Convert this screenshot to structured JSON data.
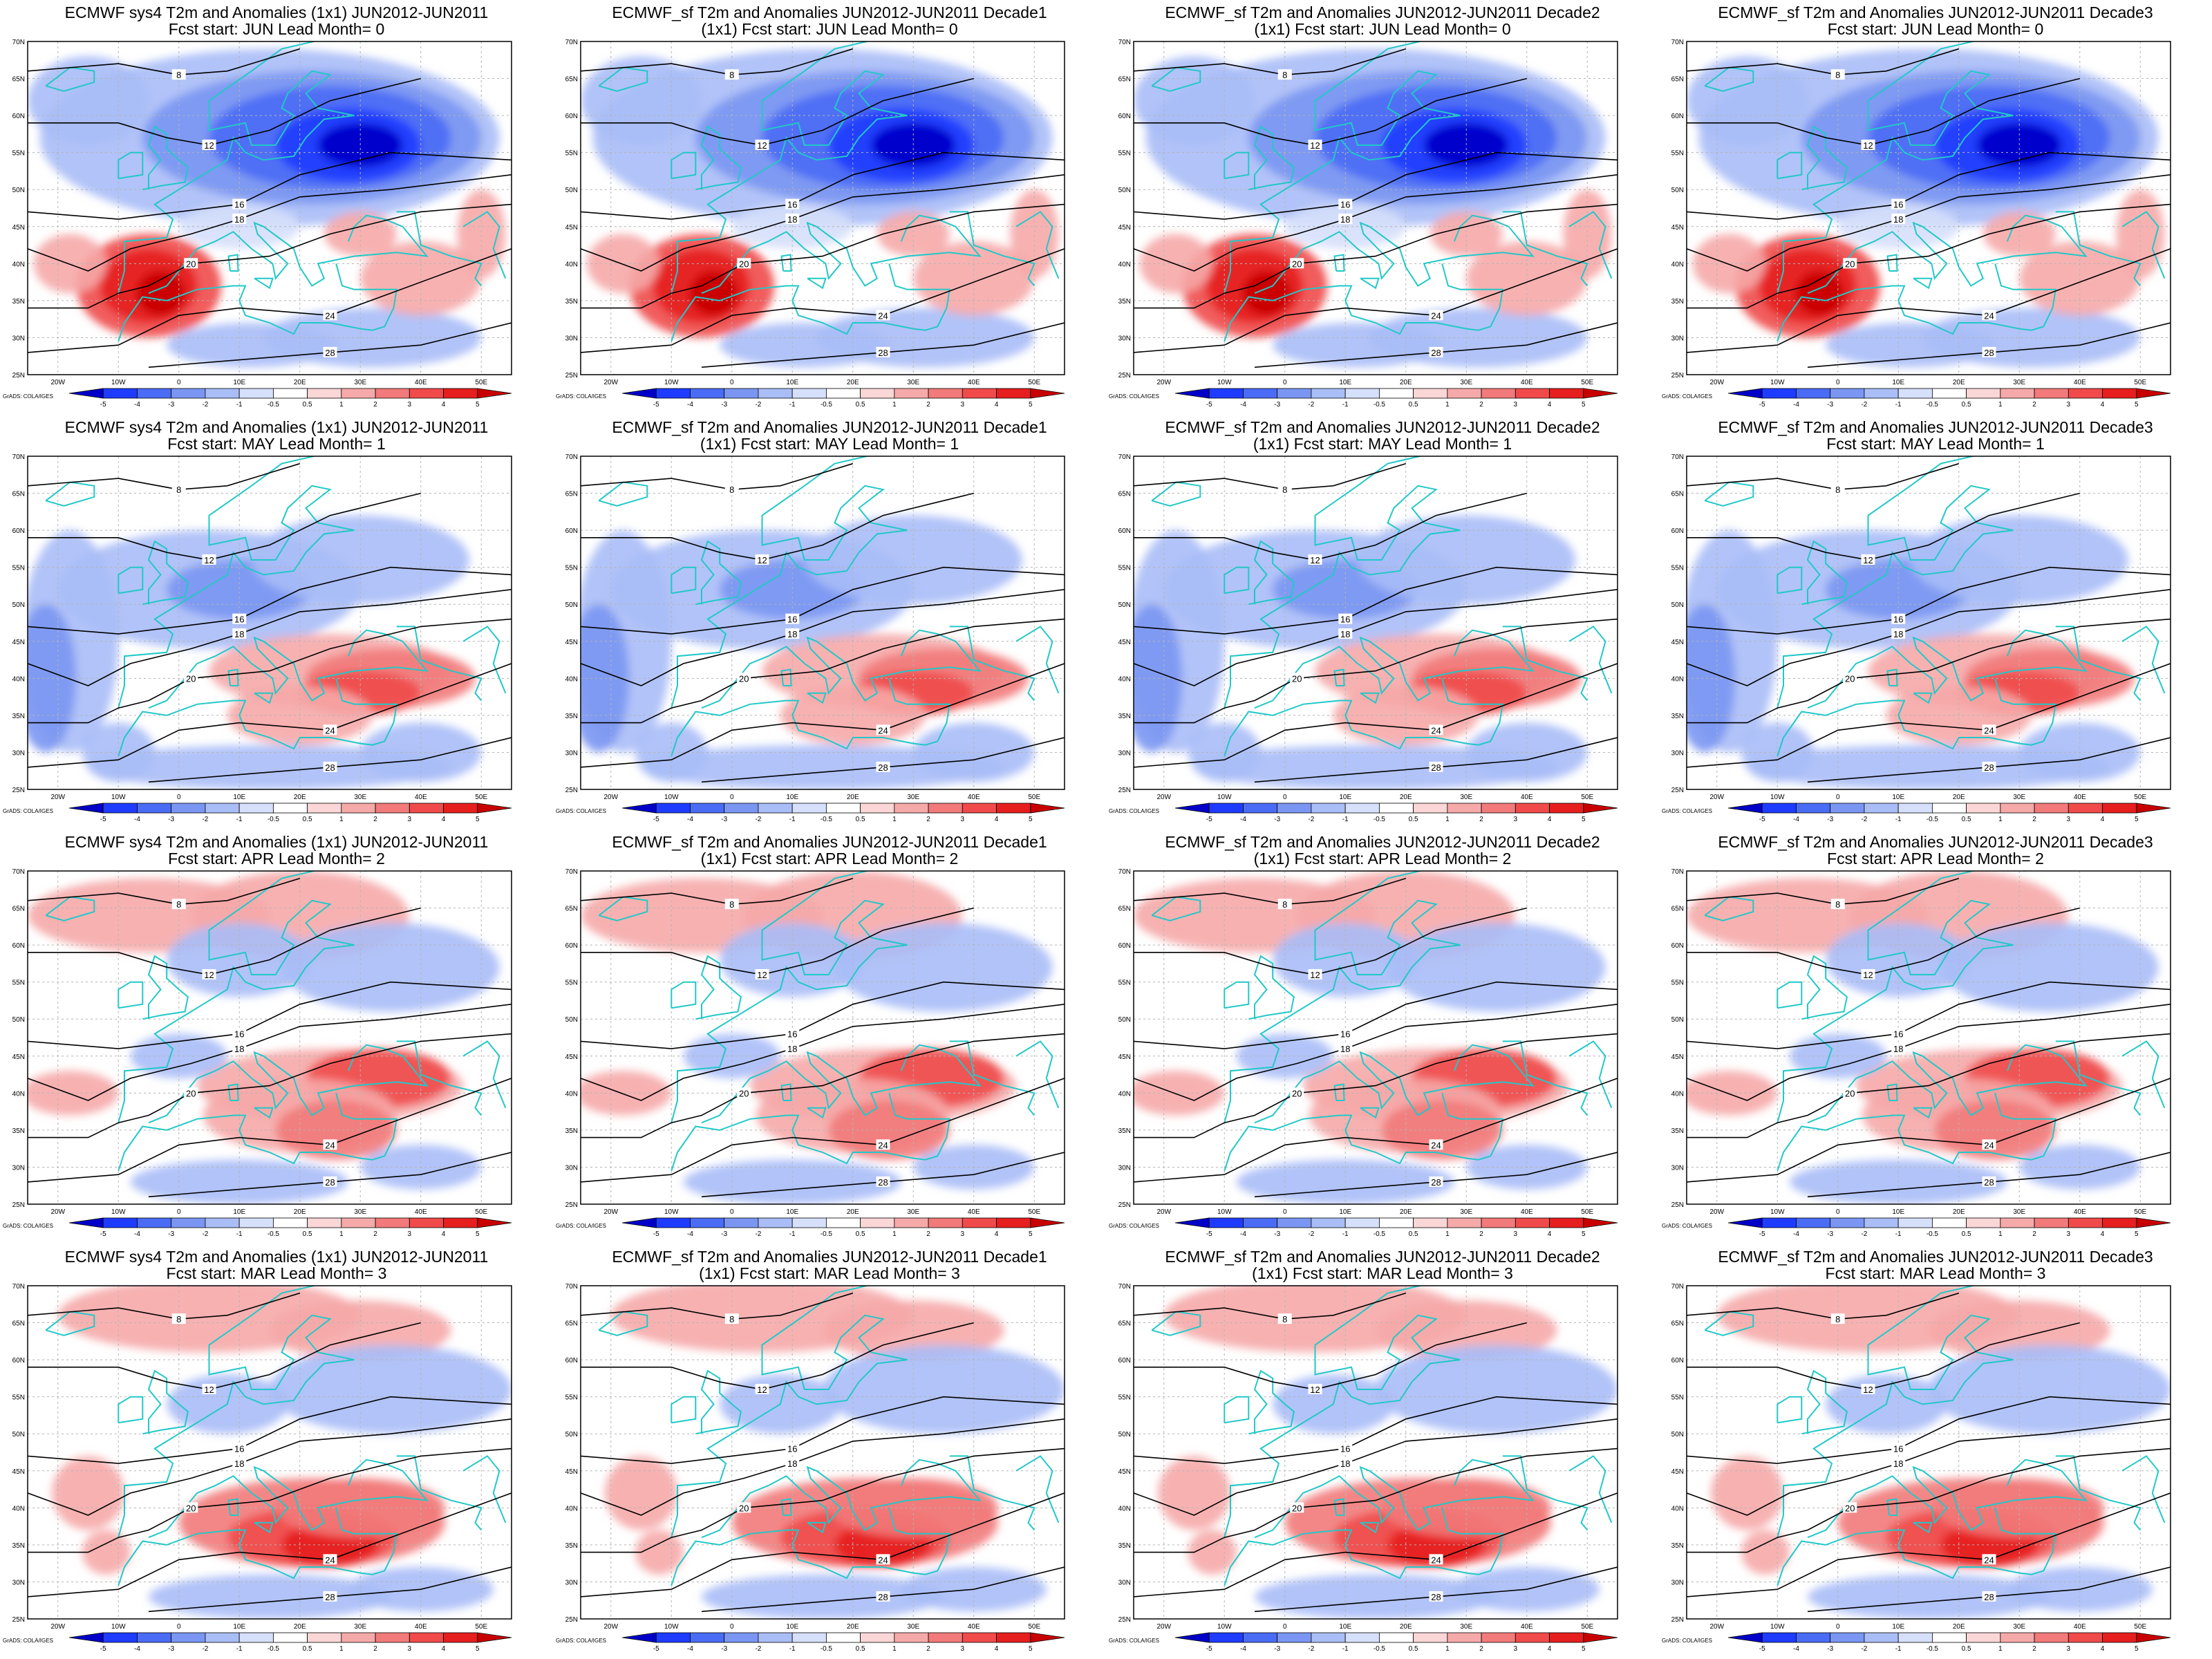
{
  "layout": {
    "rows": 4,
    "cols": 4
  },
  "panels": [
    {
      "title1": "ECMWF sys4 T2m and Anomalies (1x1) JUN2012-JUN2011",
      "title2": "Fcst start: JUN  Lead Month= 0",
      "anomaly": "cold-north"
    },
    {
      "title1": "ECMWF_sf T2m and Anomalies JUN2012-JUN2011 Decade1",
      "title2": "(1x1) Fcst start: JUN  Lead Month= 0",
      "anomaly": "cold-north"
    },
    {
      "title1": "ECMWF_sf T2m and Anomalies JUN2012-JUN2011 Decade2",
      "title2": "(1x1) Fcst start: JUN  Lead Month= 0",
      "anomaly": "cold-north"
    },
    {
      "title1": "ECMWF_sf T2m and Anomalies JUN2012-JUN2011 Decade3",
      "title2": "Fcst start: JUN  Lead Month= 0",
      "anomaly": "cold-north"
    },
    {
      "title1": "ECMWF sys4 T2m and Anomalies (1x1) JUN2012-JUN2011",
      "title2": "Fcst start: MAY  Lead Month= 1",
      "anomaly": "mixed"
    },
    {
      "title1": "ECMWF_sf T2m and Anomalies JUN2012-JUN2011 Decade1",
      "title2": "(1x1) Fcst start: MAY  Lead Month= 1",
      "anomaly": "mixed"
    },
    {
      "title1": "ECMWF_sf T2m and Anomalies JUN2012-JUN2011 Decade2",
      "title2": "(1x1) Fcst start: MAY  Lead Month= 1",
      "anomaly": "mixed"
    },
    {
      "title1": "ECMWF_sf T2m and Anomalies JUN2012-JUN2011 Decade3",
      "title2": "Fcst start: MAY  Lead Month= 1",
      "anomaly": "mixed"
    },
    {
      "title1": "ECMWF sys4 T2m and Anomalies (1x1) JUN2012-JUN2011",
      "title2": "Fcst start: APR  Lead Month= 2",
      "anomaly": "warm"
    },
    {
      "title1": "ECMWF_sf T2m and Anomalies JUN2012-JUN2011 Decade1",
      "title2": "(1x1) Fcst start: APR  Lead Month= 2",
      "anomaly": "warm"
    },
    {
      "title1": "ECMWF_sf T2m and Anomalies JUN2012-JUN2011 Decade2",
      "title2": "(1x1) Fcst start: APR  Lead Month= 2",
      "anomaly": "warm"
    },
    {
      "title1": "ECMWF_sf T2m and Anomalies JUN2012-JUN2011 Decade3",
      "title2": "Fcst start: APR  Lead Month= 2",
      "anomaly": "warm"
    },
    {
      "title1": "ECMWF sys4 T2m and Anomalies (1x1) JUN2012-JUN2011",
      "title2": "Fcst start: MAR  Lead Month= 3",
      "anomaly": "warm-south"
    },
    {
      "title1": "ECMWF_sf T2m and Anomalies JUN2012-JUN2011 Decade1",
      "title2": "(1x1) Fcst start: MAR  Lead Month= 3",
      "anomaly": "warm-south"
    },
    {
      "title1": "ECMWF_sf T2m and Anomalies JUN2012-JUN2011 Decade2",
      "title2": "(1x1) Fcst start: MAR  Lead Month= 3",
      "anomaly": "warm-south"
    },
    {
      "title1": "ECMWF_sf T2m and Anomalies JUN2012-JUN2011 Decade3",
      "title2": "Fcst start: MAR  Lead Month= 3",
      "anomaly": "warm-south"
    }
  ],
  "axes": {
    "lat_labels": [
      "70N",
      "65N",
      "60N",
      "55N",
      "50N",
      "45N",
      "40N",
      "35N",
      "30N",
      "25N"
    ],
    "lon_labels": [
      "20W",
      "10W",
      "0",
      "10E",
      "20E",
      "30E",
      "40E",
      "50E"
    ]
  },
  "colorbar": {
    "labels": [
      "-5",
      "-4",
      "-3",
      "-2",
      "-1",
      "-0.5",
      "0.5",
      "1",
      "2",
      "3",
      "4",
      "5"
    ],
    "colors": [
      "#0000c8",
      "#1e3cff",
      "#4a6cf5",
      "#7a96f2",
      "#a9bdf7",
      "#d6e0fb",
      "#ffffff",
      "#fbd6d6",
      "#f6a9a9",
      "#f27a7a",
      "#f04a4a",
      "#e61e1e",
      "#c80000"
    ]
  },
  "credit": "GrADS: COLA/IGES",
  "colors": {
    "coast": "#22c8c8",
    "contour": "#000000",
    "warm": "#ff3c3c",
    "cold": "#1e3cff"
  }
}
